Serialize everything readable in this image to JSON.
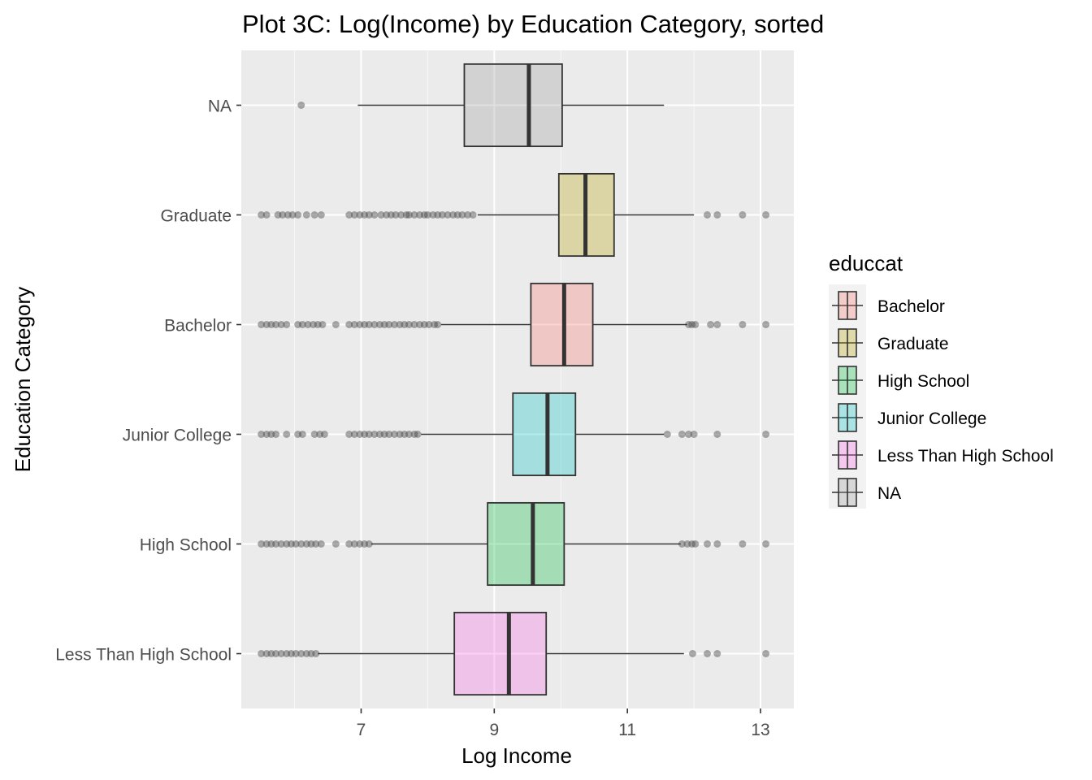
{
  "chart_data": {
    "type": "boxplot",
    "title": "Plot 3C: Log(Income) by Education Category, sorted",
    "xlabel": "Log Income",
    "ylabel": "Education Category",
    "xlim": [
      5.2,
      13.5
    ],
    "x_ticks": [
      7,
      9,
      11,
      13
    ],
    "orientation": "horizontal",
    "grid": true,
    "legend": {
      "title": "educcat",
      "position": "right",
      "entries": [
        {
          "label": "Bachelor",
          "color": "#F8766D"
        },
        {
          "label": "Graduate",
          "color": "#B79F00"
        },
        {
          "label": "High School",
          "color": "#00BA38"
        },
        {
          "label": "Junior College",
          "color": "#00BFC4"
        },
        {
          "label": "Less Than High School",
          "color": "#F564E3"
        },
        {
          "label": "NA",
          "color": "#999999"
        }
      ]
    },
    "categories": [
      "NA",
      "Graduate",
      "Bachelor",
      "Junior College",
      "High School",
      "Less Than High School"
    ],
    "boxes": [
      {
        "category": "NA",
        "color": "#999999",
        "whisker_low": 6.95,
        "q1": 8.55,
        "median": 9.52,
        "q3": 10.02,
        "whisker_high": 11.55,
        "outliers": [
          6.1
        ]
      },
      {
        "category": "Graduate",
        "color": "#B79F00",
        "whisker_low": 8.75,
        "q1": 9.97,
        "median": 10.37,
        "q3": 10.8,
        "whisker_high": 12.0,
        "outliers": [
          5.5,
          5.58,
          5.75,
          5.82,
          5.9,
          5.97,
          6.05,
          6.18,
          6.3,
          6.4,
          6.82,
          6.9,
          6.98,
          7.05,
          7.12,
          7.2,
          7.3,
          7.38,
          7.45,
          7.52,
          7.6,
          7.68,
          7.72,
          7.8,
          7.88,
          7.95,
          8.0,
          8.08,
          8.15,
          8.22,
          8.3,
          8.38,
          8.45,
          8.52,
          8.6,
          8.68,
          12.2,
          12.35,
          12.73,
          13.08
        ]
      },
      {
        "category": "Bachelor",
        "color": "#F8766D",
        "whisker_low": 8.2,
        "q1": 9.55,
        "median": 10.05,
        "q3": 10.48,
        "whisker_high": 11.9,
        "outliers": [
          5.5,
          5.58,
          5.65,
          5.72,
          5.8,
          5.88,
          6.05,
          6.12,
          6.2,
          6.28,
          6.35,
          6.42,
          6.62,
          6.82,
          6.9,
          6.98,
          7.05,
          7.12,
          7.2,
          7.28,
          7.35,
          7.42,
          7.5,
          7.58,
          7.65,
          7.72,
          7.8,
          7.88,
          7.95,
          8.02,
          8.1,
          8.15,
          11.92,
          11.97,
          12.02,
          12.25,
          12.35,
          12.73,
          13.08
        ]
      },
      {
        "category": "Junior College",
        "color": "#00BFC4",
        "whisker_low": 7.9,
        "q1": 9.28,
        "median": 9.8,
        "q3": 10.22,
        "whisker_high": 11.55,
        "outliers": [
          5.5,
          5.58,
          5.65,
          5.72,
          5.88,
          6.05,
          6.12,
          6.3,
          6.38,
          6.45,
          6.82,
          6.9,
          6.98,
          7.05,
          7.12,
          7.2,
          7.28,
          7.35,
          7.42,
          7.5,
          7.58,
          7.65,
          7.72,
          7.8,
          7.85,
          11.6,
          11.82,
          11.92,
          12.0,
          12.35,
          13.08
        ]
      },
      {
        "category": "High School",
        "color": "#00BA38",
        "whisker_low": 7.15,
        "q1": 8.9,
        "median": 9.58,
        "q3": 10.05,
        "whisker_high": 11.8,
        "outliers": [
          5.5,
          5.58,
          5.65,
          5.72,
          5.8,
          5.88,
          5.95,
          6.02,
          6.1,
          6.18,
          6.25,
          6.32,
          6.4,
          6.62,
          6.82,
          6.9,
          6.98,
          7.05,
          7.12,
          11.82,
          11.9,
          11.97,
          12.02,
          12.2,
          12.35,
          12.73,
          13.08
        ]
      },
      {
        "category": "Less Than High School",
        "color": "#F564E3",
        "whisker_low": 6.35,
        "q1": 8.4,
        "median": 9.22,
        "q3": 9.78,
        "whisker_high": 11.85,
        "outliers": [
          5.5,
          5.58,
          5.65,
          5.72,
          5.8,
          5.88,
          5.95,
          6.02,
          6.1,
          6.18,
          6.25,
          6.32,
          11.98,
          12.2,
          12.35,
          13.08
        ]
      }
    ]
  }
}
